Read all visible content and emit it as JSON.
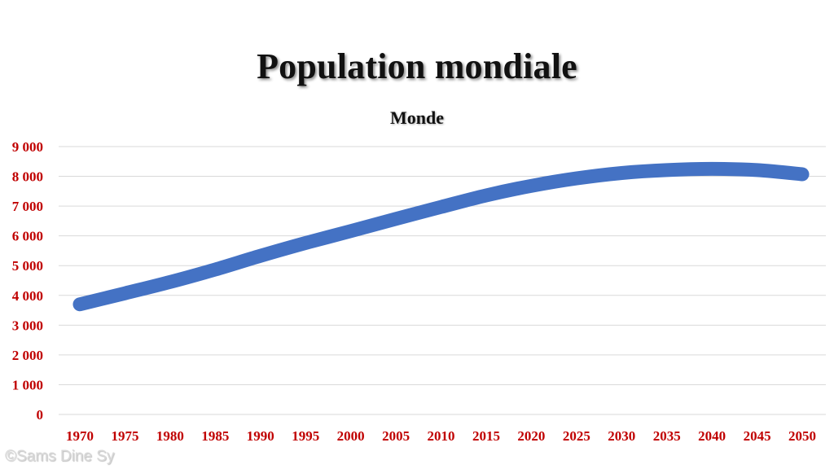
{
  "header": {
    "title": "Population mondiale",
    "subtitle": "Monde"
  },
  "footer": {
    "copyright": "©Sams Dine Sy"
  },
  "colors": {
    "line": "#4472c4",
    "tick_labels": "#c00000",
    "gridlines": "#d9d9d9"
  },
  "chart_data": {
    "type": "line",
    "title": "Monde",
    "xlabel": "",
    "ylabel": "",
    "categories": [
      "1970",
      "1975",
      "1980",
      "1985",
      "1990",
      "1995",
      "2000",
      "2005",
      "2010",
      "2015",
      "2020",
      "2025",
      "2030",
      "2035",
      "2040",
      "2045",
      "2050"
    ],
    "series": [
      {
        "values": [
          3700,
          4070,
          4450,
          4870,
          5330,
          5760,
          6160,
          6570,
          6970,
          7360,
          7680,
          7930,
          8110,
          8210,
          8250,
          8210,
          8070
        ]
      }
    ],
    "ylim": [
      0,
      9000
    ],
    "yticks": [
      0,
      1000,
      2000,
      3000,
      4000,
      5000,
      6000,
      7000,
      8000,
      9000
    ],
    "ytick_labels": [
      "0",
      "1 000",
      "2 000",
      "3 000",
      "4 000",
      "5 000",
      "6 000",
      "7 000",
      "8 000",
      "9 000"
    ],
    "grid": true,
    "legend": "none"
  }
}
